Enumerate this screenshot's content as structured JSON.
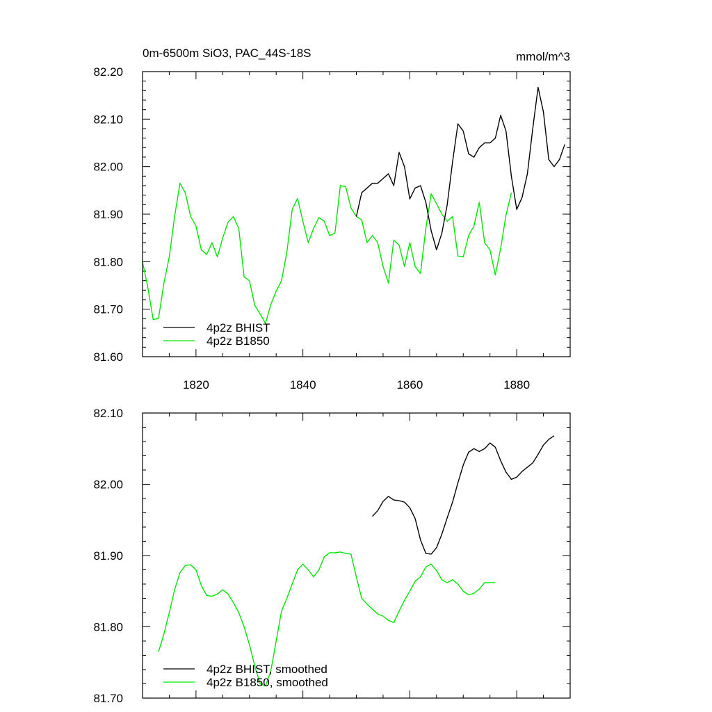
{
  "chart_data": [
    {
      "type": "line",
      "title": "0m-6500m SiO3, PAC_44S-18S",
      "units": "mmol/m^3",
      "xlim": [
        1810,
        1890
      ],
      "ylim": [
        81.6,
        82.2
      ],
      "xticks": [
        1820,
        1840,
        1860,
        1880
      ],
      "xtick_labels": [
        "1820",
        "1840",
        "1860",
        "1880"
      ],
      "yticks": [
        81.6,
        81.7,
        81.8,
        81.9,
        82.0,
        82.1,
        82.2
      ],
      "ytick_labels": [
        "81.60",
        "81.70",
        "81.80",
        "81.90",
        "82.00",
        "82.10",
        "82.20"
      ],
      "legend_position": "bottom-left",
      "series": [
        {
          "name": "4p2z BHIST",
          "color": "#000000",
          "x": [
            1850,
            1851,
            1852,
            1853,
            1854,
            1855,
            1856,
            1857,
            1858,
            1859,
            1860,
            1861,
            1862,
            1863,
            1864,
            1865,
            1866,
            1867,
            1868,
            1869,
            1870,
            1871,
            1872,
            1873,
            1874,
            1875,
            1876,
            1877,
            1878,
            1879,
            1880,
            1881,
            1882,
            1883,
            1884,
            1885,
            1886,
            1887,
            1888,
            1889
          ],
          "values": [
            81.895,
            81.945,
            81.955,
            81.965,
            81.965,
            81.975,
            81.985,
            81.96,
            82.03,
            82.0,
            81.932,
            81.955,
            81.96,
            81.925,
            81.865,
            81.825,
            81.86,
            81.92,
            82.01,
            82.09,
            82.075,
            82.027,
            82.02,
            82.04,
            82.05,
            82.05,
            82.06,
            82.108,
            82.075,
            81.98,
            81.91,
            81.935,
            81.985,
            82.08,
            82.167,
            82.115,
            82.015,
            82.0,
            82.015,
            82.047
          ]
        },
        {
          "name": "4p2z B1850",
          "color": "#00e600",
          "x": [
            1810,
            1811,
            1812,
            1813,
            1814,
            1815,
            1816,
            1817,
            1818,
            1819,
            1820,
            1821,
            1822,
            1823,
            1824,
            1825,
            1826,
            1827,
            1828,
            1829,
            1830,
            1831,
            1832,
            1833,
            1834,
            1835,
            1836,
            1837,
            1838,
            1839,
            1840,
            1841,
            1842,
            1843,
            1844,
            1845,
            1846,
            1847,
            1848,
            1849,
            1850,
            1851,
            1852,
            1853,
            1854,
            1855,
            1856,
            1857,
            1858,
            1859,
            1860,
            1861,
            1862,
            1863,
            1864,
            1865,
            1866,
            1867,
            1868,
            1869,
            1870,
            1871,
            1872,
            1873,
            1874,
            1875,
            1876,
            1877,
            1878,
            1879
          ],
          "values": [
            81.8,
            81.745,
            81.678,
            81.681,
            81.755,
            81.81,
            81.895,
            81.965,
            81.945,
            81.895,
            81.875,
            81.825,
            81.815,
            81.84,
            81.81,
            81.85,
            81.883,
            81.895,
            81.87,
            81.768,
            81.76,
            81.708,
            81.69,
            81.67,
            81.71,
            81.738,
            81.76,
            81.82,
            81.91,
            81.933,
            81.885,
            81.84,
            81.87,
            81.893,
            81.885,
            81.855,
            81.86,
            81.96,
            81.958,
            81.913,
            81.895,
            81.888,
            81.84,
            81.855,
            81.84,
            81.79,
            81.755,
            81.845,
            81.835,
            81.79,
            81.84,
            81.79,
            81.775,
            81.87,
            81.943,
            81.922,
            81.9,
            81.885,
            81.895,
            81.812,
            81.81,
            81.855,
            81.875,
            81.925,
            81.84,
            81.825,
            81.772,
            81.828,
            81.898,
            81.945
          ]
        }
      ]
    },
    {
      "type": "line",
      "xlim": [
        1810,
        1890
      ],
      "ylim": [
        81.7,
        82.1
      ],
      "xticks": [
        1820,
        1840,
        1860,
        1880
      ],
      "yticks": [
        81.7,
        81.8,
        81.9,
        82.0,
        82.1
      ],
      "ytick_labels": [
        "81.70",
        "81.80",
        "81.90",
        "82.00",
        "82.10"
      ],
      "legend_position": "bottom-left",
      "series": [
        {
          "name": "4p2z BHIST, smoothed",
          "color": "#000000",
          "x": [
            1853,
            1854,
            1855,
            1856,
            1857,
            1858,
            1859,
            1860,
            1861,
            1862,
            1863,
            1864,
            1865,
            1866,
            1867,
            1868,
            1869,
            1870,
            1871,
            1872,
            1873,
            1874,
            1875,
            1876,
            1877,
            1878,
            1879,
            1880,
            1881,
            1882,
            1883,
            1884,
            1885,
            1886,
            1887
          ],
          "values": [
            81.955,
            81.963,
            81.976,
            81.983,
            81.978,
            81.977,
            81.975,
            81.967,
            81.952,
            81.922,
            81.903,
            81.902,
            81.911,
            81.93,
            81.953,
            81.975,
            82.002,
            82.027,
            82.045,
            82.05,
            82.046,
            82.05,
            82.058,
            82.052,
            82.033,
            82.017,
            82.007,
            82.01,
            82.018,
            82.024,
            82.03,
            82.042,
            82.055,
            82.063,
            82.068
          ]
        },
        {
          "name": "4p2z B1850, smoothed",
          "color": "#00e600",
          "x": [
            1813,
            1814,
            1815,
            1816,
            1817,
            1818,
            1819,
            1820,
            1821,
            1822,
            1823,
            1824,
            1825,
            1826,
            1827,
            1828,
            1829,
            1830,
            1831,
            1832,
            1833,
            1834,
            1835,
            1836,
            1837,
            1838,
            1839,
            1840,
            1841,
            1842,
            1843,
            1844,
            1845,
            1846,
            1847,
            1848,
            1849,
            1850,
            1851,
            1852,
            1853,
            1854,
            1855,
            1856,
            1857,
            1858,
            1859,
            1860,
            1861,
            1862,
            1863,
            1864,
            1865,
            1866,
            1867,
            1868,
            1869,
            1870,
            1871,
            1872,
            1873,
            1874,
            1875,
            1876
          ],
          "values": [
            81.765,
            81.79,
            81.82,
            81.852,
            81.876,
            81.886,
            81.887,
            81.88,
            81.858,
            81.844,
            81.843,
            81.846,
            81.852,
            81.846,
            81.834,
            81.82,
            81.8,
            81.775,
            81.745,
            81.72,
            81.717,
            81.738,
            81.78,
            81.822,
            81.84,
            81.86,
            81.88,
            81.888,
            81.88,
            81.87,
            81.88,
            81.898,
            81.904,
            81.904,
            81.905,
            81.903,
            81.902,
            81.87,
            81.84,
            81.832,
            81.825,
            81.818,
            81.815,
            81.809,
            81.806,
            81.822,
            81.837,
            81.85,
            81.864,
            81.87,
            81.884,
            81.888,
            81.879,
            81.866,
            81.862,
            81.866,
            81.86,
            81.85,
            81.845,
            81.847,
            81.853,
            81.862,
            81.862,
            81.862
          ]
        }
      ]
    }
  ]
}
